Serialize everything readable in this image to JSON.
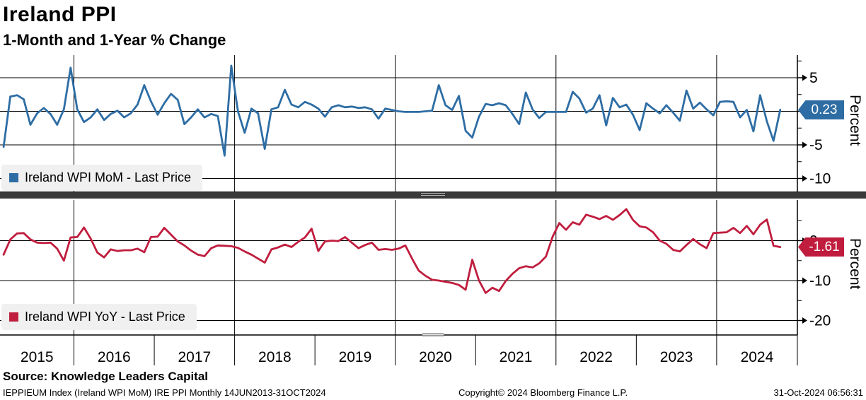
{
  "header": {
    "title": "Ireland PPI",
    "subtitle": "1-Month and 1-Year % Change"
  },
  "x_axis": {
    "years": [
      "2015",
      "2016",
      "2017",
      "2018",
      "2019",
      "2020",
      "2021",
      "2022",
      "2023",
      "2024"
    ]
  },
  "panels": {
    "top": {
      "legend": "Ireland WPI MoM - Last Price",
      "axis_label": "Percent",
      "last_price_label": "0.23"
    },
    "bottom": {
      "legend": "Ireland WPI YoY - Last Price",
      "axis_label": "Percent",
      "last_price_label": "-1.61"
    }
  },
  "footer": {
    "source": "Source: Knowledge Leaders Capital",
    "meta_left": "IEPPIEUM Index (Ireland WPI MoM) IRE PPI  Monthly 14JUN2013-31OCT2024",
    "meta_center": "Copyright© 2024 Bloomberg Finance L.P.",
    "meta_right": "31-Oct-2024 06:56:31"
  },
  "chart_data": [
    {
      "type": "line",
      "name": "Ireland WPI MoM - Last Price",
      "unit": "percent",
      "frequency": "monthly",
      "start": "2015-02",
      "end": "2024-10",
      "last_value": 0.23,
      "color": "#2E6DA4",
      "y_ticks": [
        5,
        0,
        -5,
        -10
      ],
      "y_minor_ticks": [
        7.5,
        2.5,
        -2.5,
        -7.5
      ],
      "ylim": [
        -11.8,
        8.4
      ],
      "x_year_gridlines": [
        2016,
        2018,
        2020,
        2022,
        2024
      ],
      "legend_position": "bottom-left",
      "grid": true,
      "values": [
        -5.3,
        2.2,
        2.4,
        1.8,
        -2.0,
        -0.3,
        0.5,
        -0.4,
        -2.0,
        0.3,
        6.5,
        0.3,
        -1.6,
        -0.9,
        0.3,
        -1.3,
        -0.4,
        0.1,
        -0.9,
        -0.3,
        1.0,
        3.9,
        1.5,
        -0.5,
        1.2,
        2.6,
        1.7,
        -1.9,
        -0.9,
        0.3,
        -0.9,
        -0.4,
        -0.7,
        -6.6,
        6.8,
        0.0,
        -3.2,
        0.4,
        -0.3,
        -5.6,
        0.3,
        0.6,
        3.2,
        1.0,
        0.6,
        1.4,
        1.0,
        0.4,
        -0.8,
        0.6,
        0.9,
        0.6,
        0.7,
        0.5,
        0.6,
        0.3,
        -1.1,
        0.4,
        0.2,
        0.0,
        -0.1,
        -0.1,
        -0.1,
        0.0,
        0.1,
        3.9,
        0.9,
        0.2,
        2.3,
        -2.9,
        -3.9,
        -0.8,
        1.1,
        0.9,
        1.2,
        0.9,
        -0.4,
        -1.9,
        2.8,
        0.3,
        -1.0,
        -0.1,
        -0.1,
        -0.1,
        -0.1,
        2.9,
        1.9,
        -0.2,
        0.4,
        2.4,
        -2.1,
        2.0,
        0.6,
        1.0,
        -0.5,
        -2.8,
        1.2,
        0.4,
        -0.3,
        0.9,
        -0.2,
        -1.4,
        3.1,
        0.4,
        1.3,
        0.3,
        -0.6,
        1.4,
        1.5,
        1.4,
        -0.9,
        0.2,
        -3.0,
        2.4,
        -1.5,
        -4.4,
        0.23
      ]
    },
    {
      "type": "line",
      "name": "Ireland WPI YoY - Last Price",
      "unit": "percent",
      "frequency": "monthly",
      "start": "2015-02",
      "end": "2024-10",
      "last_value": -1.61,
      "color": "#C01D3E",
      "y_ticks": [
        0,
        -10,
        -20
      ],
      "y_minor_ticks": [
        5,
        -5,
        -15
      ],
      "ylim": [
        -23.6,
        10.2
      ],
      "x_year_gridlines": [
        2016,
        2018,
        2020,
        2022,
        2024
      ],
      "legend_position": "bottom-left",
      "grid": true,
      "values": [
        -3.5,
        0.3,
        1.8,
        1.9,
        0.3,
        -0.5,
        -0.6,
        -0.5,
        -2.0,
        -5.0,
        0.8,
        0.9,
        3.3,
        0.5,
        -3.0,
        -4.2,
        -2.2,
        -2.6,
        -2.4,
        -2.4,
        -2.0,
        -2.9,
        0.9,
        1.0,
        3.2,
        1.5,
        -0.2,
        -1.2,
        -2.5,
        -3.5,
        -3.9,
        -1.9,
        -1.2,
        -1.3,
        -1.4,
        -1.8,
        -2.7,
        -3.5,
        -4.5,
        -5.5,
        -2.2,
        -1.7,
        -1.0,
        -1.6,
        -0.3,
        0.8,
        3.0,
        -2.6,
        -0.2,
        0.0,
        -0.1,
        0.9,
        -0.5,
        -1.9,
        -1.1,
        -0.5,
        -2.3,
        -2.1,
        -2.3,
        -2.0,
        -1.2,
        -4.5,
        -7.5,
        -8.8,
        -9.8,
        -10.0,
        -10.3,
        -10.6,
        -11.1,
        -12.3,
        -4.8,
        -10.0,
        -13.1,
        -11.8,
        -12.6,
        -10.1,
        -8.3,
        -6.9,
        -6.4,
        -6.7,
        -5.7,
        -4.0,
        1.0,
        4.4,
        2.7,
        4.6,
        4.0,
        6.5,
        6.0,
        5.4,
        6.2,
        5.2,
        6.4,
        7.9,
        5.2,
        3.6,
        3.3,
        2.1,
        0.0,
        -0.8,
        -2.3,
        -2.7,
        -1.1,
        0.4,
        -0.9,
        -1.9,
        1.9,
        2.0,
        2.1,
        3.2,
        1.9,
        3.7,
        1.6,
        4.0,
        5.3,
        -1.3,
        -1.61
      ]
    }
  ]
}
